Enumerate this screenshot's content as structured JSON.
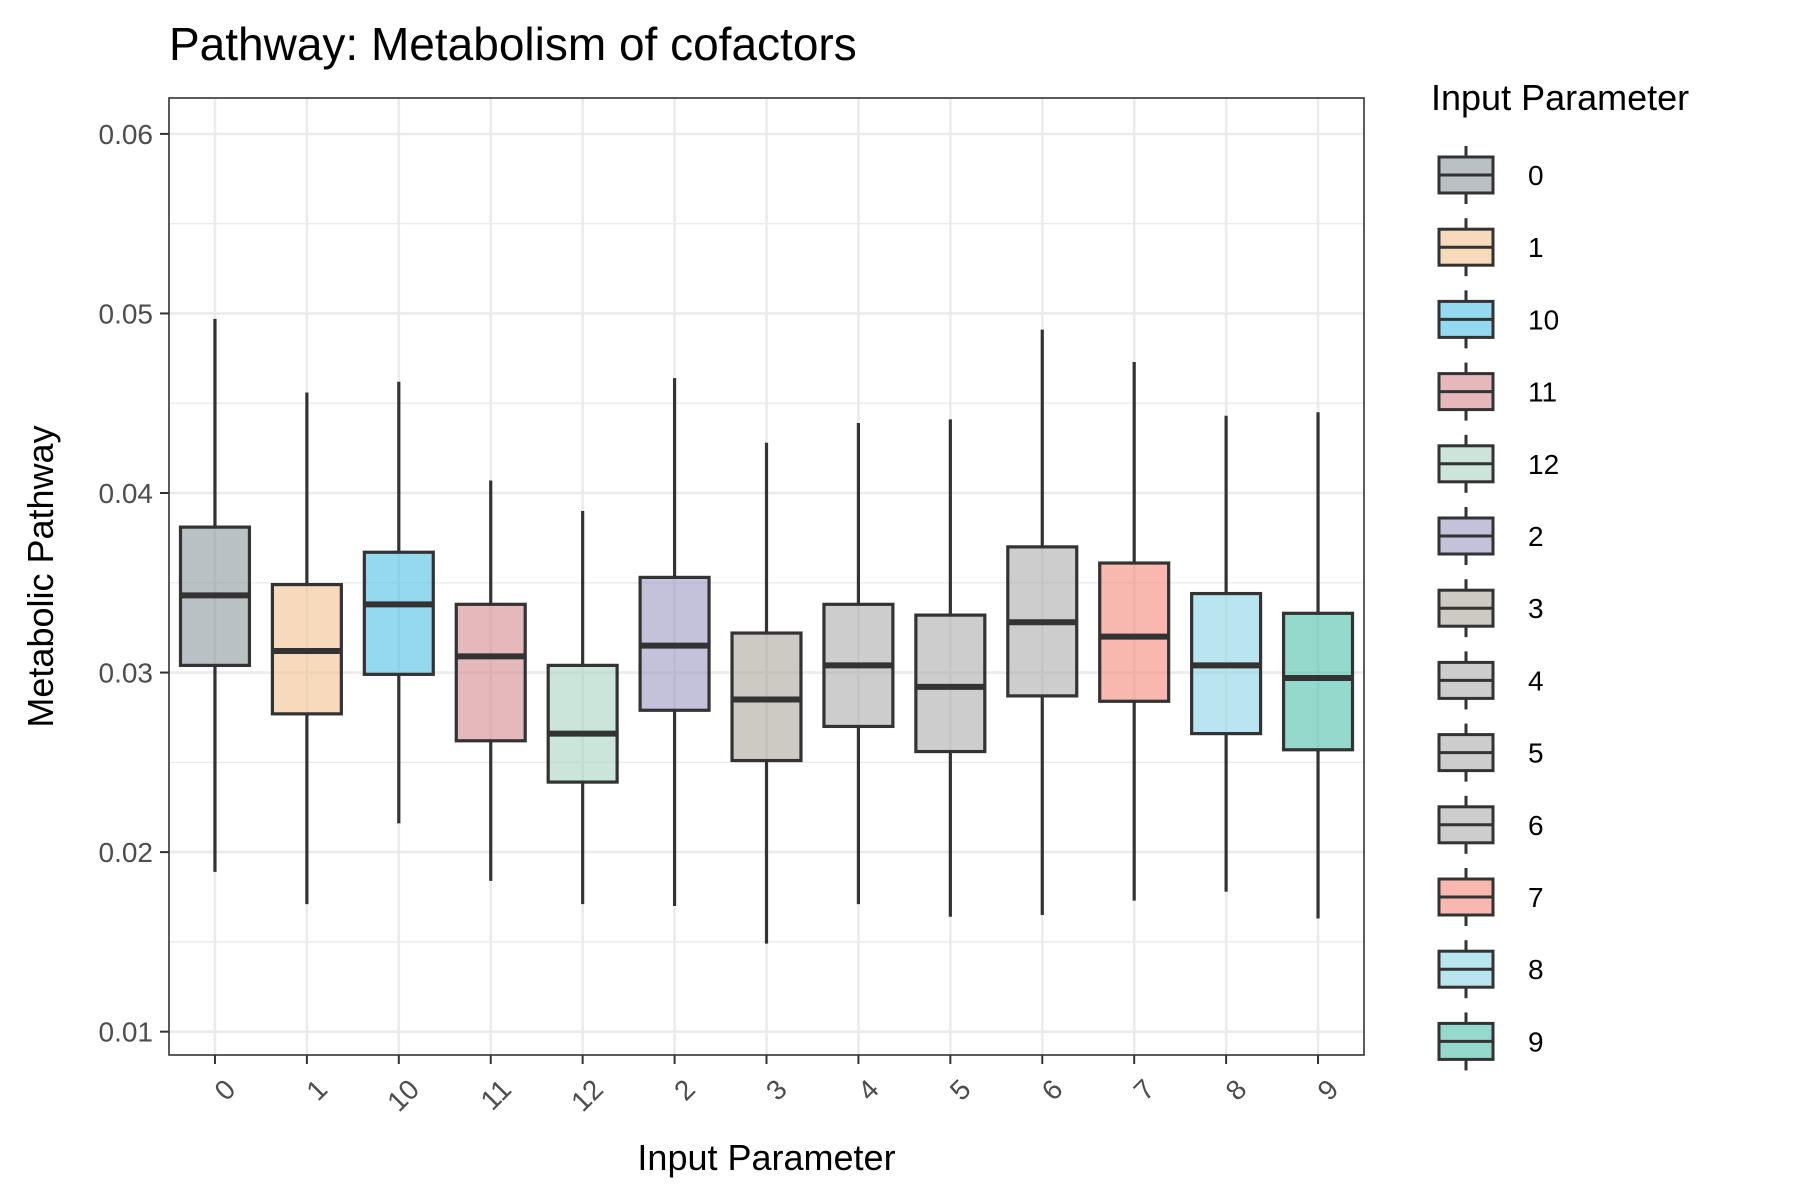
{
  "chart_data": {
    "type": "boxplot",
    "title": "Pathway: Metabolism of cofactors",
    "xlabel": "Input Parameter",
    "ylabel": "Metabolic Pathway",
    "ylim": [
      0.0087,
      0.062
    ],
    "yticks": [
      0.01,
      0.02,
      0.03,
      0.04,
      0.05,
      0.06
    ],
    "ytick_labels": [
      "0.01",
      "0.02",
      "0.03",
      "0.04",
      "0.05",
      "0.06"
    ],
    "grid": true,
    "legend": {
      "title": "Input Parameter",
      "placement": "right"
    },
    "categories": [
      "0",
      "1",
      "10",
      "11",
      "12",
      "2",
      "3",
      "4",
      "5",
      "6",
      "7",
      "8",
      "9"
    ],
    "boxes": [
      {
        "category": "0",
        "min": 0.0189,
        "q1": 0.0304,
        "median": 0.0343,
        "q3": 0.0381,
        "max": 0.0497,
        "color": "#8A979C"
      },
      {
        "category": "1",
        "min": 0.0171,
        "q1": 0.0277,
        "median": 0.0312,
        "q3": 0.0349,
        "max": 0.0456,
        "color": "#F2C08D"
      },
      {
        "category": "10",
        "min": 0.0216,
        "q1": 0.0299,
        "median": 0.0338,
        "q3": 0.0367,
        "max": 0.0462,
        "color": "#4FBFE7"
      },
      {
        "category": "11",
        "min": 0.0184,
        "q1": 0.0262,
        "median": 0.0309,
        "q3": 0.0338,
        "max": 0.0407,
        "color": "#D3898E"
      },
      {
        "category": "12",
        "min": 0.0171,
        "q1": 0.0239,
        "median": 0.0266,
        "q3": 0.0304,
        "max": 0.039,
        "color": "#A8D3C3"
      },
      {
        "category": "2",
        "min": 0.017,
        "q1": 0.0279,
        "median": 0.0315,
        "q3": 0.0353,
        "max": 0.0464,
        "color": "#9C99C2"
      },
      {
        "category": "3",
        "min": 0.0149,
        "q1": 0.0251,
        "median": 0.0285,
        "q3": 0.0322,
        "max": 0.0428,
        "color": "#ABA59B"
      },
      {
        "category": "4",
        "min": 0.0171,
        "q1": 0.027,
        "median": 0.0304,
        "q3": 0.0338,
        "max": 0.0439,
        "color": "#ABABAB"
      },
      {
        "category": "5",
        "min": 0.0164,
        "q1": 0.0256,
        "median": 0.0292,
        "q3": 0.0332,
        "max": 0.0441,
        "color": "#ABABAB"
      },
      {
        "category": "6",
        "min": 0.0165,
        "q1": 0.0287,
        "median": 0.0328,
        "q3": 0.037,
        "max": 0.0491,
        "color": "#ABABAB"
      },
      {
        "category": "7",
        "min": 0.0173,
        "q1": 0.0284,
        "median": 0.032,
        "q3": 0.0361,
        "max": 0.0473,
        "color": "#F3887A"
      },
      {
        "category": "8",
        "min": 0.0178,
        "q1": 0.0266,
        "median": 0.0304,
        "q3": 0.0344,
        "max": 0.0443,
        "color": "#8AD4E6"
      },
      {
        "category": "9",
        "min": 0.0163,
        "q1": 0.0257,
        "median": 0.0297,
        "q3": 0.0333,
        "max": 0.0445,
        "color": "#4DC0A9"
      }
    ]
  }
}
